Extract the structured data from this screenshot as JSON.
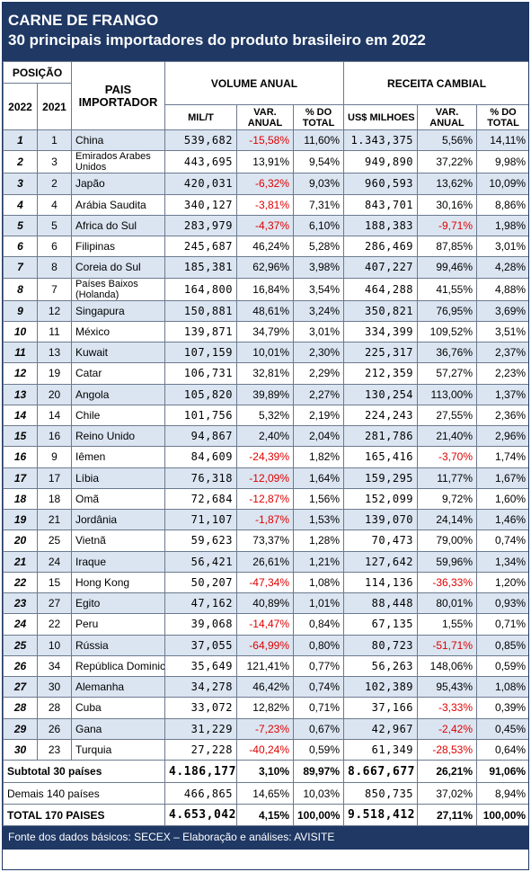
{
  "title": "CARNE DE FRANGO",
  "subtitle": "30 principais importadores do produto brasileiro em 2022",
  "headers": {
    "posicao": "POSIÇÃO",
    "y2022": "2022",
    "y2021": "2021",
    "pais": "PAIS IMPORTADOR",
    "volume": "VOLUME ANUAL",
    "receita": "RECEITA CAMBIAL",
    "mil_t": "MIL/T",
    "var": "VAR. ANUAL",
    "pct_total": "% DO TOTAL",
    "uss": "US$ MILHOES"
  },
  "rows": [
    {
      "r": "1",
      "p": "1",
      "c": "China",
      "v": "539,682",
      "vv": "-15,58%",
      "vp": "11,60%",
      "u": "1.343,375",
      "uv": "5,56%",
      "up": "14,11%"
    },
    {
      "r": "2",
      "p": "3",
      "c": "Emirados Arabes Unidos",
      "v": "443,695",
      "vv": "13,91%",
      "vp": "9,54%",
      "u": "949,890",
      "uv": "37,22%",
      "up": "9,98%"
    },
    {
      "r": "3",
      "p": "2",
      "c": "Japão",
      "v": "420,031",
      "vv": "-6,32%",
      "vp": "9,03%",
      "u": "960,593",
      "uv": "13,62%",
      "up": "10,09%"
    },
    {
      "r": "4",
      "p": "4",
      "c": "Arábia Saudita",
      "v": "340,127",
      "vv": "-3,81%",
      "vp": "7,31%",
      "u": "843,701",
      "uv": "30,16%",
      "up": "8,86%"
    },
    {
      "r": "5",
      "p": "5",
      "c": "Africa do Sul",
      "v": "283,979",
      "vv": "-4,37%",
      "vp": "6,10%",
      "u": "188,383",
      "uv": "-9,71%",
      "up": "1,98%"
    },
    {
      "r": "6",
      "p": "6",
      "c": "Filipinas",
      "v": "245,687",
      "vv": "46,24%",
      "vp": "5,28%",
      "u": "286,469",
      "uv": "87,85%",
      "up": "3,01%"
    },
    {
      "r": "7",
      "p": "8",
      "c": "Coreia do Sul",
      "v": "185,381",
      "vv": "62,96%",
      "vp": "3,98%",
      "u": "407,227",
      "uv": "99,46%",
      "up": "4,28%"
    },
    {
      "r": "8",
      "p": "7",
      "c": "Países Baixos (Holanda)",
      "v": "164,800",
      "vv": "16,84%",
      "vp": "3,54%",
      "u": "464,288",
      "uv": "41,55%",
      "up": "4,88%"
    },
    {
      "r": "9",
      "p": "12",
      "c": "Singapura",
      "v": "150,881",
      "vv": "48,61%",
      "vp": "3,24%",
      "u": "350,821",
      "uv": "76,95%",
      "up": "3,69%"
    },
    {
      "r": "10",
      "p": "11",
      "c": "México",
      "v": "139,871",
      "vv": "34,79%",
      "vp": "3,01%",
      "u": "334,399",
      "uv": "109,52%",
      "up": "3,51%"
    },
    {
      "r": "11",
      "p": "13",
      "c": "Kuwait",
      "v": "107,159",
      "vv": "10,01%",
      "vp": "2,30%",
      "u": "225,317",
      "uv": "36,76%",
      "up": "2,37%"
    },
    {
      "r": "12",
      "p": "19",
      "c": "Catar",
      "v": "106,731",
      "vv": "32,81%",
      "vp": "2,29%",
      "u": "212,359",
      "uv": "57,27%",
      "up": "2,23%"
    },
    {
      "r": "13",
      "p": "20",
      "c": "Angola",
      "v": "105,820",
      "vv": "39,89%",
      "vp": "2,27%",
      "u": "130,254",
      "uv": "113,00%",
      "up": "1,37%"
    },
    {
      "r": "14",
      "p": "14",
      "c": "Chile",
      "v": "101,756",
      "vv": "5,32%",
      "vp": "2,19%",
      "u": "224,243",
      "uv": "27,55%",
      "up": "2,36%"
    },
    {
      "r": "15",
      "p": "16",
      "c": "Reino Unido",
      "v": "94,867",
      "vv": "2,40%",
      "vp": "2,04%",
      "u": "281,786",
      "uv": "21,40%",
      "up": "2,96%"
    },
    {
      "r": "16",
      "p": "9",
      "c": "Iêmen",
      "v": "84,609",
      "vv": "-24,39%",
      "vp": "1,82%",
      "u": "165,416",
      "uv": "-3,70%",
      "up": "1,74%"
    },
    {
      "r": "17",
      "p": "17",
      "c": "Líbia",
      "v": "76,318",
      "vv": "-12,09%",
      "vp": "1,64%",
      "u": "159,295",
      "uv": "11,77%",
      "up": "1,67%"
    },
    {
      "r": "18",
      "p": "18",
      "c": "Omã",
      "v": "72,684",
      "vv": "-12,87%",
      "vp": "1,56%",
      "u": "152,099",
      "uv": "9,72%",
      "up": "1,60%"
    },
    {
      "r": "19",
      "p": "21",
      "c": "Jordânia",
      "v": "71,107",
      "vv": "-1,87%",
      "vp": "1,53%",
      "u": "139,070",
      "uv": "24,14%",
      "up": "1,46%"
    },
    {
      "r": "20",
      "p": "25",
      "c": "Vietnã",
      "v": "59,623",
      "vv": "73,37%",
      "vp": "1,28%",
      "u": "70,473",
      "uv": "79,00%",
      "up": "0,74%"
    },
    {
      "r": "21",
      "p": "24",
      "c": "Iraque",
      "v": "56,421",
      "vv": "26,61%",
      "vp": "1,21%",
      "u": "127,642",
      "uv": "59,96%",
      "up": "1,34%"
    },
    {
      "r": "22",
      "p": "15",
      "c": "Hong Kong",
      "v": "50,207",
      "vv": "-47,34%",
      "vp": "1,08%",
      "u": "114,136",
      "uv": "-36,33%",
      "up": "1,20%"
    },
    {
      "r": "23",
      "p": "27",
      "c": "Egito",
      "v": "47,162",
      "vv": "40,89%",
      "vp": "1,01%",
      "u": "88,448",
      "uv": "80,01%",
      "up": "0,93%"
    },
    {
      "r": "24",
      "p": "22",
      "c": "Peru",
      "v": "39,068",
      "vv": "-14,47%",
      "vp": "0,84%",
      "u": "67,135",
      "uv": "1,55%",
      "up": "0,71%"
    },
    {
      "r": "25",
      "p": "10",
      "c": "Rússia",
      "v": "37,055",
      "vv": "-64,99%",
      "vp": "0,80%",
      "u": "80,723",
      "uv": "-51,71%",
      "up": "0,85%"
    },
    {
      "r": "26",
      "p": "34",
      "c": "República Dominicana",
      "v": "35,649",
      "vv": "121,41%",
      "vp": "0,77%",
      "u": "56,263",
      "uv": "148,06%",
      "up": "0,59%"
    },
    {
      "r": "27",
      "p": "30",
      "c": "Alemanha",
      "v": "34,278",
      "vv": "46,42%",
      "vp": "0,74%",
      "u": "102,389",
      "uv": "95,43%",
      "up": "1,08%"
    },
    {
      "r": "28",
      "p": "28",
      "c": "Cuba",
      "v": "33,072",
      "vv": "12,82%",
      "vp": "0,71%",
      "u": "37,166",
      "uv": "-3,33%",
      "up": "0,39%"
    },
    {
      "r": "29",
      "p": "26",
      "c": "Gana",
      "v": "31,229",
      "vv": "-7,23%",
      "vp": "0,67%",
      "u": "42,967",
      "uv": "-2,42%",
      "up": "0,45%"
    },
    {
      "r": "30",
      "p": "23",
      "c": "Turquia",
      "v": "27,228",
      "vv": "-40,24%",
      "vp": "0,59%",
      "u": "61,349",
      "uv": "-28,53%",
      "up": "0,64%"
    }
  ],
  "subtotal": {
    "label": "Subtotal 30 países",
    "v": "4.186,177",
    "vv": "3,10%",
    "vp": "89,97%",
    "u": "8.667,677",
    "uv": "26,21%",
    "up": "91,06%"
  },
  "demais": {
    "label": "Demais 140 países",
    "v": "466,865",
    "vv": "14,65%",
    "vp": "10,03%",
    "u": "850,735",
    "uv": "37,02%",
    "up": "8,94%"
  },
  "total": {
    "label": "TOTAL 170 PAISES",
    "v": "4.653,042",
    "vv": "4,15%",
    "vp": "100,00%",
    "u": "9.518,412",
    "uv": "27,11%",
    "up": "100,00%"
  },
  "footer": "Fonte dos dados básicos: SECEX – Elaboração e análises: AVISITE",
  "colors": {
    "navy": "#1f3864",
    "alt_row": "#dbe5f1",
    "negative": "#e00000"
  }
}
